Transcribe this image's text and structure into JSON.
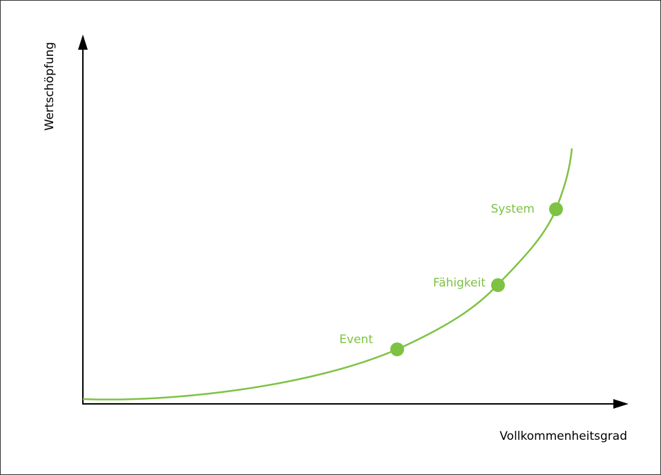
{
  "axes": {
    "y_label": "Wertschöpfung",
    "x_label": "Vollkommenheitsgrad"
  },
  "points": [
    {
      "label": "Event"
    },
    {
      "label": "Fähigkeit"
    },
    {
      "label": "System"
    }
  ]
}
